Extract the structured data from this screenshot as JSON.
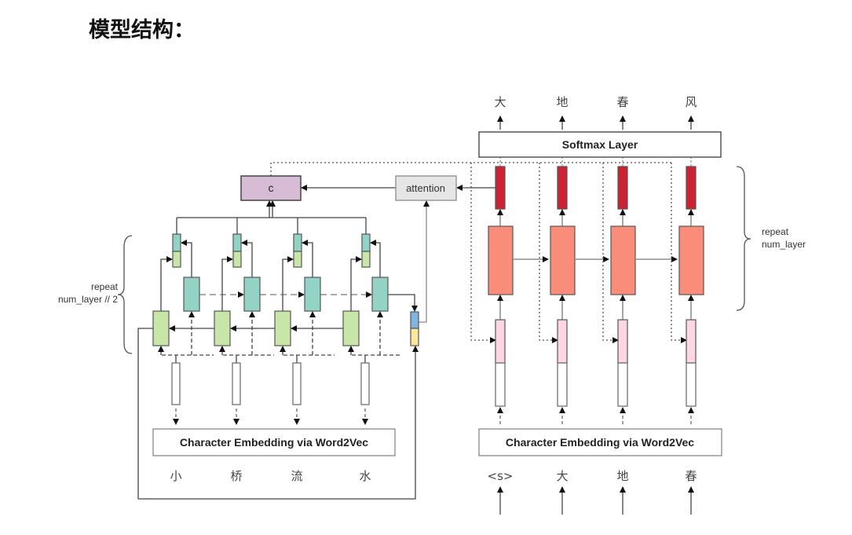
{
  "title": "模型结构：",
  "encoder": {
    "inputs": [
      "小",
      "桥",
      "流",
      "水"
    ],
    "embedding_label": "Character Embedding via Word2Vec",
    "repeat_label_line1": "repeat",
    "repeat_label_line2": "num_layer // 2"
  },
  "context_label": "c",
  "attention_label": "attention",
  "decoder": {
    "inputs": [
      "<s>",
      "大",
      "地",
      "春"
    ],
    "outputs": [
      "大",
      "地",
      "春",
      "风"
    ],
    "embedding_label": "Character Embedding via Word2Vec",
    "softmax_label": "Softmax Layer",
    "repeat_label_line1": "repeat",
    "repeat_label_line2": "num_layer"
  },
  "colors": {
    "context": "#d7bcd5",
    "attention": "#e6e6e6",
    "backward_rnn": "#c8e6a8",
    "forward_rnn": "#93d3c6",
    "decoder_rnn": "#fa8c7a",
    "decoder_output": "#cc2233",
    "decoder_input": "#fcd6e2",
    "attn_state_top": "#7fb5e0",
    "attn_state_bottom": "#fce79c"
  }
}
